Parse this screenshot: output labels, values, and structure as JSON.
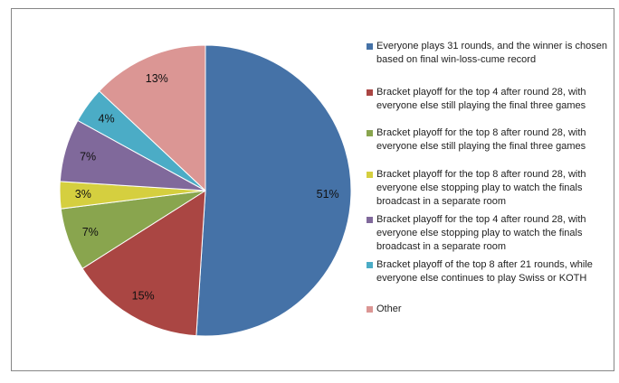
{
  "chart_data": {
    "type": "pie",
    "title": "",
    "start_angle": "top, clockwise",
    "slices": [
      {
        "label": "Everyone plays 31 rounds, and the winner is chosen based on final win-loss-cume record",
        "value": 51,
        "data_label": "51%",
        "color": "#4572A7"
      },
      {
        "label": "Bracket playoff for the top 4 after round 28, with everyone else still playing the final three games",
        "value": 15,
        "data_label": "15%",
        "color": "#AA4643"
      },
      {
        "label": "Bracket playoff for the top 8 after round 28, with everyone else still playing the final three games",
        "value": 7,
        "data_label": "7%",
        "color": "#89A54E"
      },
      {
        "label": "Bracket playoff for the top 8 after round 28, with everyone else stopping play to watch the finals broadcast in a separate room",
        "value": 3,
        "data_label": "3%",
        "color": "#D5CF3F"
      },
      {
        "label": "Bracket playoff for the top 4 after round 28, with everyone else stopping play to watch the finals broadcast in a separate room",
        "value": 7,
        "data_label": "7%",
        "color": "#80699B"
      },
      {
        "label": "Bracket playoff of the top 8 after 21 rounds, while everyone else continues to play Swiss or KOTH",
        "value": 4,
        "data_label": "4%",
        "color": "#4BACC6"
      },
      {
        "label": "Other",
        "value": 13,
        "data_label": "13%",
        "color": "#DB9694"
      }
    ],
    "legend_position": "right"
  }
}
